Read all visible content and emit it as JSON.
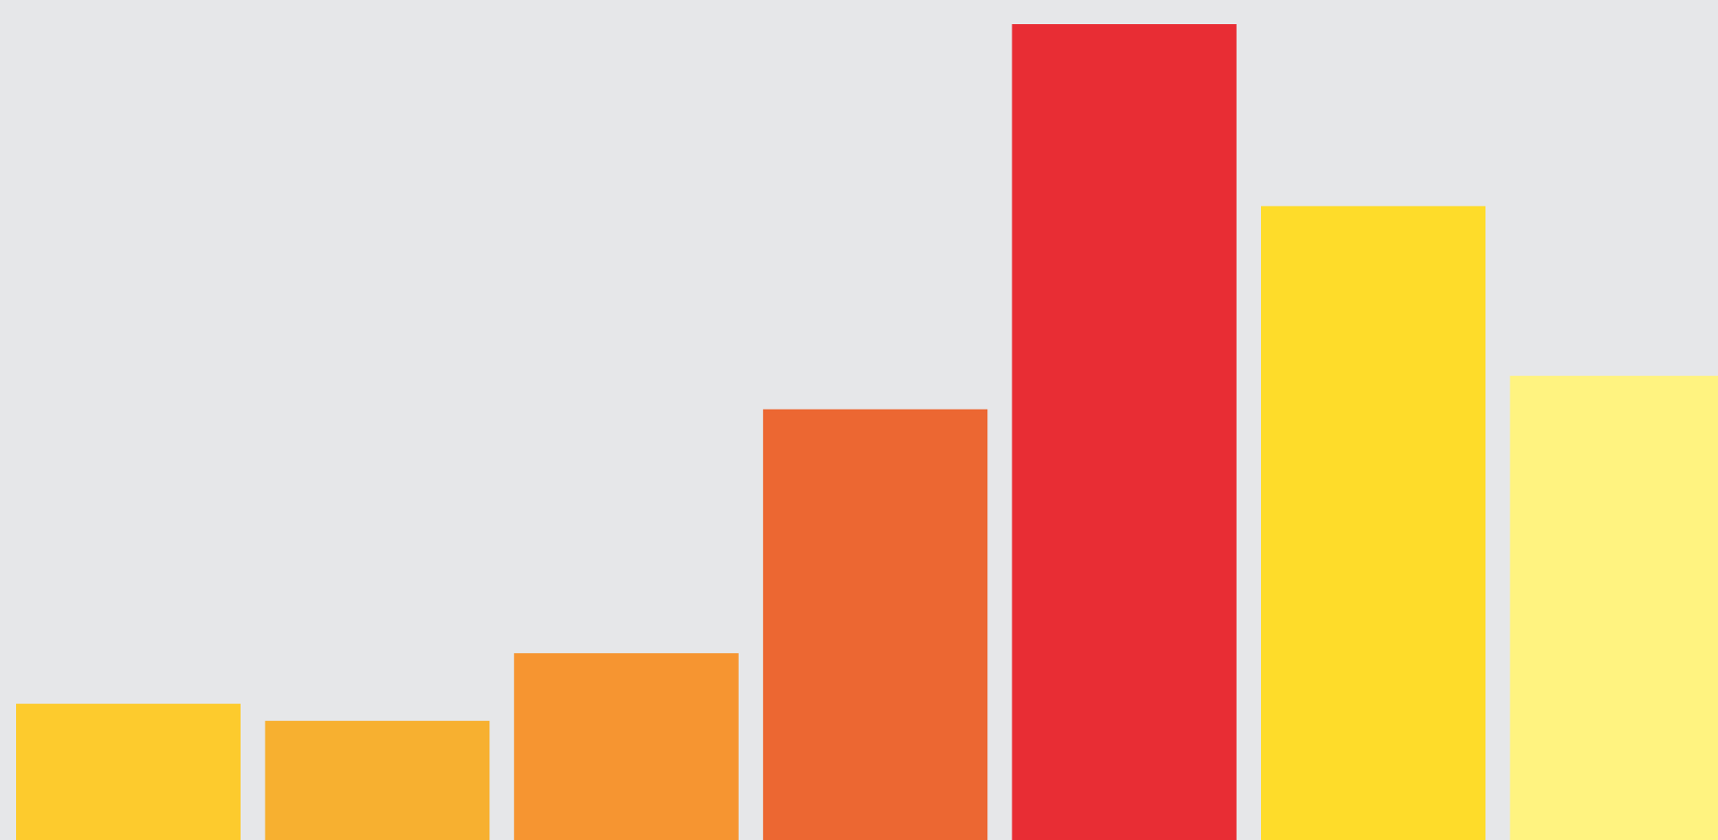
{
  "chart_data": {
    "type": "bar",
    "title": "",
    "xlabel": "",
    "ylabel": "",
    "grid": false,
    "legend": "none",
    "ylim": [
      0,
      100
    ],
    "values": [
      16.7,
      14.6,
      22.9,
      52.8,
      100,
      77.7,
      56.9
    ],
    "colors": [
      "#FDCB2D",
      "#F7B030",
      "#F69531",
      "#EC6732",
      "#E82D34",
      "#FEDC2A",
      "#FFF380"
    ]
  },
  "page": {
    "background": "#E6E7E9"
  }
}
